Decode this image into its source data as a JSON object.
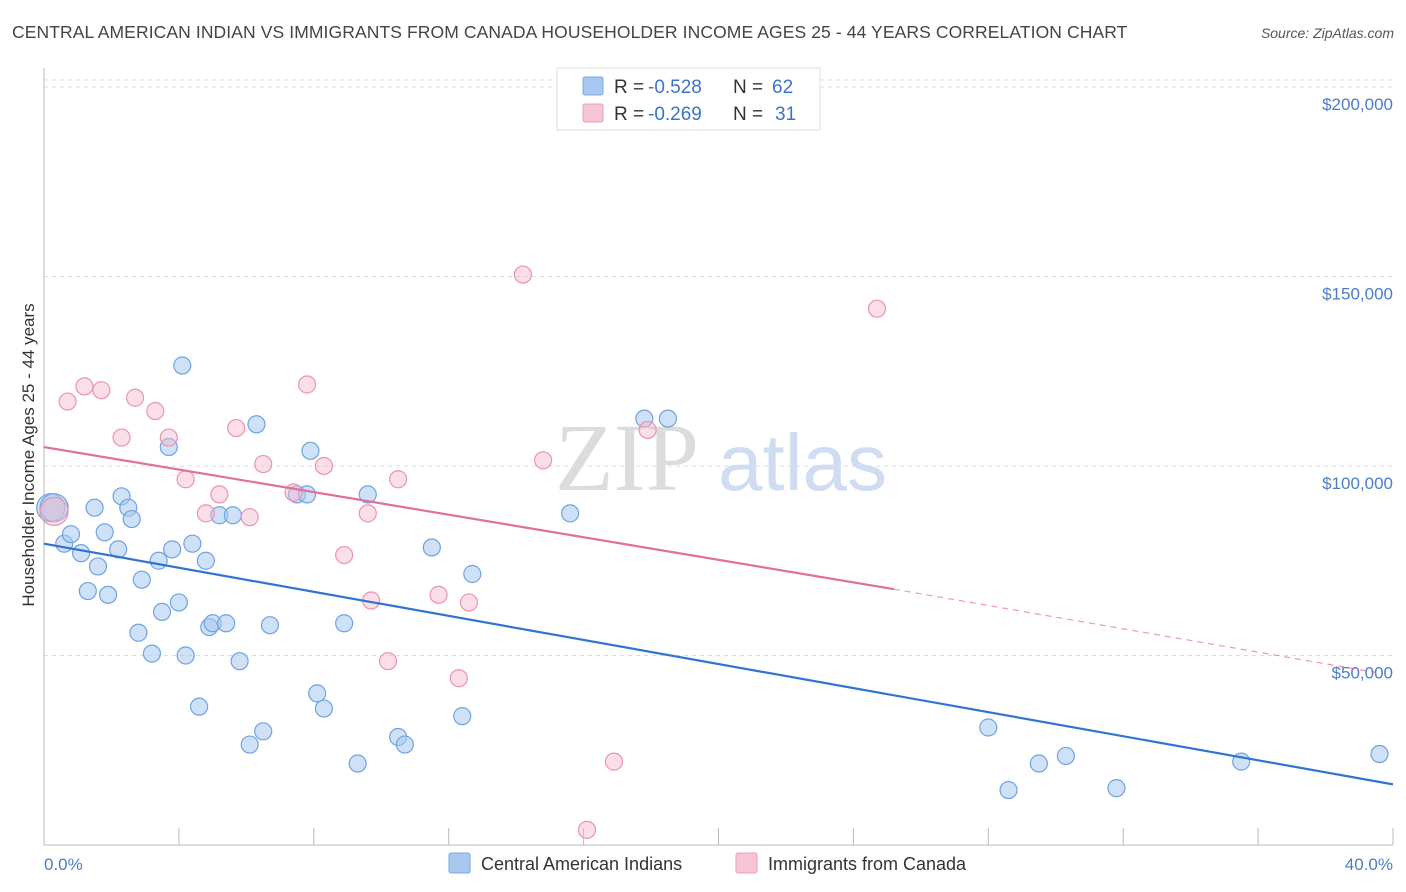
{
  "title": "CENTRAL AMERICAN INDIAN VS IMMIGRANTS FROM CANADA HOUSEHOLDER INCOME AGES 25 - 44 YEARS CORRELATION CHART",
  "source": "Source: ZipAtlas.com",
  "watermark": {
    "zip": "ZIP",
    "atlas": "atlas"
  },
  "legend": {
    "r_label": "R =",
    "n_label": "N =",
    "series": [
      {
        "r": "-0.528",
        "n": "62",
        "color": "#a8c8f0"
      },
      {
        "r": "-0.269",
        "n": "31",
        "color": "#f7b8cc"
      }
    ]
  },
  "bottom_legend": [
    "Central American Indians",
    "Immigrants from Canada"
  ],
  "chart_data": {
    "type": "scatter",
    "title": "CENTRAL AMERICAN INDIAN VS IMMIGRANTS FROM CANADA HOUSEHOLDER INCOME AGES 25 - 44 YEARS CORRELATION CHART",
    "xlabel": "",
    "ylabel": "Householder Income Ages 25 - 44 years",
    "xlim": [
      0,
      40
    ],
    "ylim": [
      0,
      205000
    ],
    "x_tick_labels": [
      "0.0%",
      "40.0%"
    ],
    "y_ticks": [
      50000,
      100000,
      150000,
      200000
    ],
    "y_tick_labels": [
      "$50,000",
      "$100,000",
      "$150,000",
      "$200,000"
    ],
    "grid": true,
    "series": [
      {
        "name": "Central American Indians",
        "color": "#6fa3e0",
        "trend": {
          "x": [
            0,
            40
          ],
          "y": [
            79500,
            16000
          ],
          "style": "solid"
        },
        "points": [
          [
            0.2,
            89000
          ],
          [
            0.3,
            89000
          ],
          [
            0.6,
            79500
          ],
          [
            0.8,
            82000
          ],
          [
            1.1,
            77000
          ],
          [
            1.3,
            67000
          ],
          [
            1.5,
            89000
          ],
          [
            1.6,
            73500
          ],
          [
            1.8,
            82500
          ],
          [
            1.9,
            66000
          ],
          [
            2.2,
            78000
          ],
          [
            2.3,
            92000
          ],
          [
            2.5,
            89000
          ],
          [
            2.6,
            86000
          ],
          [
            2.8,
            56000
          ],
          [
            2.9,
            70000
          ],
          [
            3.2,
            50500
          ],
          [
            3.4,
            75000
          ],
          [
            3.5,
            61500
          ],
          [
            3.7,
            105000
          ],
          [
            3.8,
            78000
          ],
          [
            4.0,
            64000
          ],
          [
            4.1,
            126500
          ],
          [
            4.2,
            50000
          ],
          [
            4.4,
            79500
          ],
          [
            4.6,
            36500
          ],
          [
            4.8,
            75000
          ],
          [
            4.9,
            57500
          ],
          [
            5.0,
            58500
          ],
          [
            5.2,
            87000
          ],
          [
            5.4,
            58500
          ],
          [
            5.6,
            87000
          ],
          [
            5.8,
            48500
          ],
          [
            6.1,
            26500
          ],
          [
            6.3,
            111000
          ],
          [
            6.5,
            30000
          ],
          [
            6.7,
            58000
          ],
          [
            7.5,
            92500
          ],
          [
            7.8,
            92500
          ],
          [
            7.9,
            104000
          ],
          [
            8.1,
            40000
          ],
          [
            8.3,
            36000
          ],
          [
            8.9,
            58500
          ],
          [
            9.3,
            21500
          ],
          [
            9.6,
            92500
          ],
          [
            10.5,
            28500
          ],
          [
            10.7,
            26500
          ],
          [
            11.5,
            78500
          ],
          [
            12.4,
            34000
          ],
          [
            12.7,
            71500
          ],
          [
            15.6,
            87500
          ],
          [
            17.8,
            112500
          ],
          [
            18.5,
            112500
          ],
          [
            28.0,
            31000
          ],
          [
            28.6,
            14500
          ],
          [
            29.5,
            21500
          ],
          [
            30.3,
            23500
          ],
          [
            31.8,
            15000
          ],
          [
            35.5,
            22000
          ],
          [
            39.6,
            24000
          ]
        ]
      },
      {
        "name": "Immigrants from Canada",
        "color": "#f0a3bd",
        "trend": {
          "x": [
            0,
            25.2
          ],
          "y": [
            105000,
            67500
          ],
          "style": "solid",
          "extension": {
            "x": [
              25.2,
              39.5
            ],
            "y": [
              67500,
              45500
            ],
            "style": "dashed"
          }
        },
        "points": [
          [
            0.3,
            88000
          ],
          [
            0.7,
            117000
          ],
          [
            1.2,
            121000
          ],
          [
            1.7,
            120000
          ],
          [
            2.3,
            107500
          ],
          [
            2.7,
            118000
          ],
          [
            3.3,
            114500
          ],
          [
            3.7,
            107500
          ],
          [
            4.2,
            96500
          ],
          [
            4.8,
            87500
          ],
          [
            5.2,
            92500
          ],
          [
            5.7,
            110000
          ],
          [
            6.1,
            86500
          ],
          [
            6.5,
            100500
          ],
          [
            7.4,
            93000
          ],
          [
            7.8,
            121500
          ],
          [
            8.3,
            100000
          ],
          [
            8.9,
            76500
          ],
          [
            9.6,
            87500
          ],
          [
            9.7,
            64500
          ],
          [
            10.2,
            48500
          ],
          [
            10.5,
            96500
          ],
          [
            11.7,
            66000
          ],
          [
            12.3,
            44000
          ],
          [
            12.6,
            64000
          ],
          [
            14.2,
            150500
          ],
          [
            14.8,
            101500
          ],
          [
            16.1,
            4000
          ],
          [
            16.9,
            22000
          ],
          [
            17.9,
            109500
          ],
          [
            24.7,
            141500
          ]
        ]
      }
    ]
  }
}
